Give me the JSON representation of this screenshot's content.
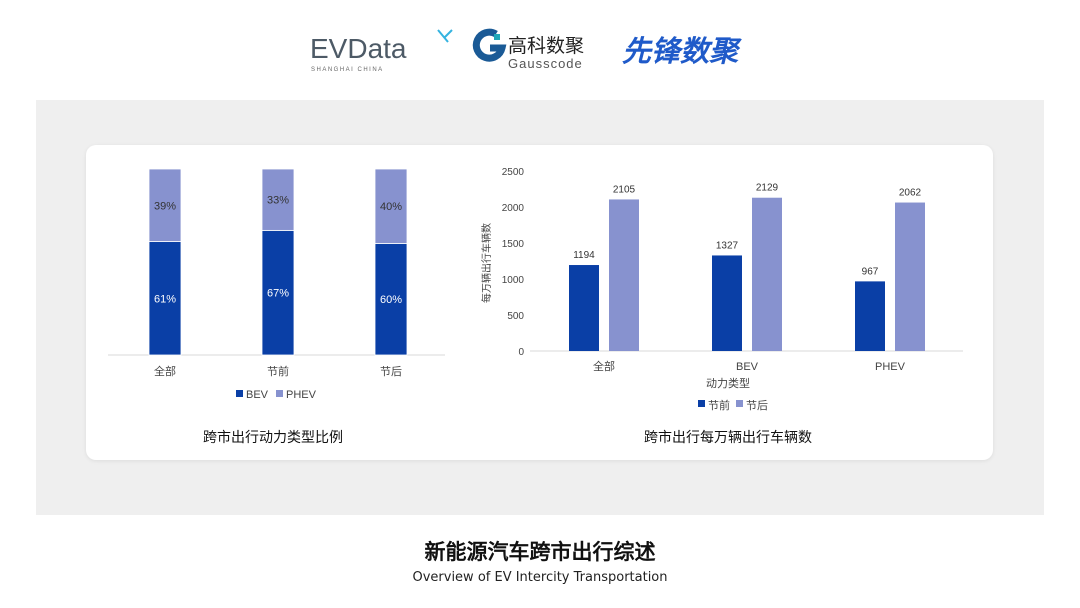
{
  "logos": {
    "evdata": {
      "text": "EVData",
      "sub": "SHANGHAI CHINA"
    },
    "gausscode": {
      "cn": "高科数聚",
      "en": "Gausscode"
    },
    "xianfeng": {
      "text": "先锋数聚"
    }
  },
  "colors": {
    "bev": "#0a3fa6",
    "phev": "#8792cf",
    "before": "#0a3fa6",
    "after": "#8792cf",
    "panel": "#efefef"
  },
  "chart_data": [
    {
      "type": "bar",
      "stacked": true,
      "percent": true,
      "title": "跨市出行动力类型比例",
      "categories": [
        "全部",
        "节前",
        "节后"
      ],
      "series": [
        {
          "name": "BEV",
          "values": [
            61,
            67,
            60
          ],
          "labels": [
            "61%",
            "67%",
            "60%"
          ]
        },
        {
          "name": "PHEV",
          "values": [
            39,
            33,
            40
          ],
          "labels": [
            "39%",
            "33%",
            "40%"
          ]
        }
      ],
      "legend": "bottom",
      "grid": false
    },
    {
      "type": "bar",
      "title": "跨市出行每万辆出行车辆数",
      "xlabel": "动力类型",
      "ylabel": "每万辆出行车辆数",
      "categories": [
        "全部",
        "BEV",
        "PHEV"
      ],
      "ylim": [
        0,
        2500
      ],
      "yticks": [
        "0",
        "500",
        "1000",
        "1500",
        "2000",
        "2500"
      ],
      "series": [
        {
          "name": "节前",
          "values": [
            1194,
            1327,
            967
          ]
        },
        {
          "name": "节后",
          "values": [
            2105,
            2129,
            2062
          ]
        }
      ],
      "legend": "bottom",
      "grid": false
    }
  ],
  "footer": {
    "title": "新能源汽车跨市出行综述",
    "subtitle": "Overview of EV Intercity Transportation"
  }
}
